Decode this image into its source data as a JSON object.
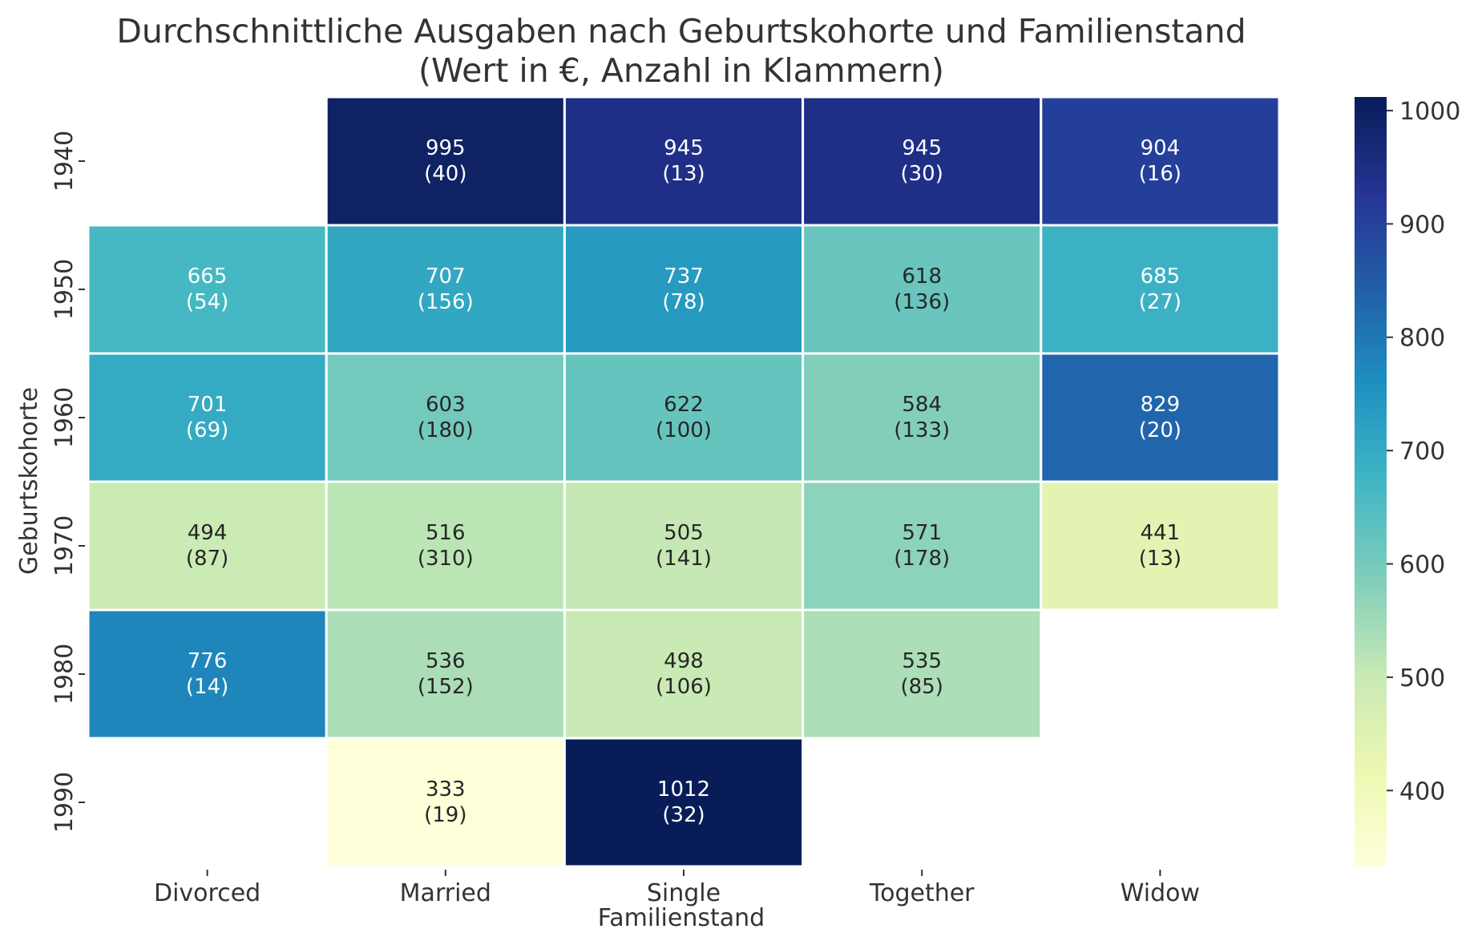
{
  "chart_data": {
    "type": "heatmap",
    "title": "Durchschnittliche Ausgaben nach Geburtskohorte und Familienstand",
    "subtitle": "(Wert in €, Anzahl in Klammern)",
    "xlabel": "Familienstand",
    "ylabel": "Geburtskohorte",
    "x_categories": [
      "Divorced",
      "Married",
      "Single",
      "Together",
      "Widow"
    ],
    "y_categories": [
      "1940",
      "1950",
      "1960",
      "1970",
      "1980",
      "1990"
    ],
    "values": [
      [
        null,
        995,
        945,
        945,
        904
      ],
      [
        665,
        707,
        737,
        618,
        685
      ],
      [
        701,
        603,
        622,
        584,
        829
      ],
      [
        494,
        516,
        505,
        571,
        441
      ],
      [
        776,
        536,
        498,
        535,
        null
      ],
      [
        null,
        333,
        1012,
        null,
        null
      ]
    ],
    "counts": [
      [
        null,
        40,
        13,
        30,
        16
      ],
      [
        54,
        156,
        78,
        136,
        27
      ],
      [
        69,
        180,
        100,
        133,
        20
      ],
      [
        87,
        310,
        141,
        178,
        13
      ],
      [
        14,
        152,
        106,
        85,
        null
      ],
      [
        null,
        19,
        32,
        null,
        null
      ]
    ],
    "colormap": "YlGnBu",
    "vmin": 333,
    "vmax": 1012,
    "colorbar_ticks": [
      400,
      500,
      600,
      700,
      800,
      900,
      1000
    ],
    "grid": false
  }
}
